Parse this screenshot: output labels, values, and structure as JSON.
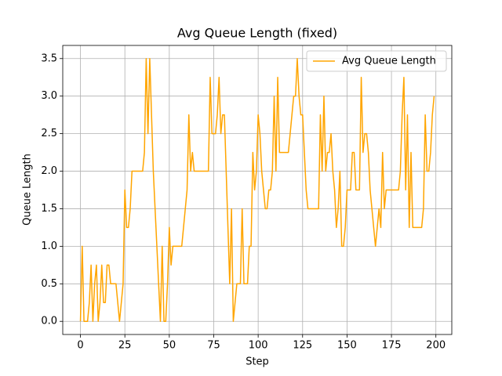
{
  "chart_data": {
    "type": "line",
    "title": "Avg Queue Length (fixed)",
    "xlabel": "Step",
    "ylabel": "Queue Length",
    "x": [
      0,
      1,
      2,
      3,
      4,
      5,
      6,
      7,
      8,
      9,
      10,
      11,
      12,
      13,
      14,
      15,
      16,
      17,
      18,
      19,
      20,
      21,
      22,
      23,
      24,
      25,
      26,
      27,
      28,
      29,
      30,
      31,
      32,
      33,
      34,
      35,
      36,
      37,
      38,
      39,
      40,
      41,
      42,
      43,
      44,
      45,
      46,
      47,
      48,
      49,
      50,
      51,
      52,
      53,
      54,
      55,
      56,
      57,
      58,
      59,
      60,
      61,
      62,
      63,
      64,
      65,
      66,
      67,
      68,
      69,
      70,
      71,
      72,
      73,
      74,
      75,
      76,
      77,
      78,
      79,
      80,
      81,
      82,
      83,
      84,
      85,
      86,
      87,
      88,
      89,
      90,
      91,
      92,
      93,
      94,
      95,
      96,
      97,
      98,
      99,
      100,
      101,
      102,
      103,
      104,
      105,
      106,
      107,
      108,
      109,
      110,
      111,
      112,
      113,
      114,
      115,
      116,
      117,
      118,
      119,
      120,
      121,
      122,
      123,
      124,
      125,
      126,
      127,
      128,
      129,
      130,
      131,
      132,
      133,
      134,
      135,
      136,
      137,
      138,
      139,
      140,
      141,
      142,
      143,
      144,
      145,
      146,
      147,
      148,
      149,
      150,
      151,
      152,
      153,
      154,
      155,
      156,
      157,
      158,
      159,
      160,
      161,
      162,
      163,
      164,
      165,
      166,
      167,
      168,
      169,
      170,
      171,
      172,
      173,
      174,
      175,
      176,
      177,
      178,
      179,
      180,
      181,
      182,
      183,
      184,
      185,
      186,
      187,
      188,
      189,
      190,
      191,
      192,
      193,
      194,
      195,
      196,
      197,
      198,
      199
    ],
    "series": [
      {
        "name": "Avg Queue Length",
        "color": "#ffa500",
        "values": [
          0,
          1,
          0,
          0,
          0,
          0.25,
          0.75,
          0,
          0.5,
          0.75,
          0,
          0.25,
          0.75,
          0.25,
          0.25,
          0.75,
          0.75,
          0.5,
          0.5,
          0.5,
          0.5,
          0.25,
          0,
          0.25,
          0.5,
          1.75,
          1.25,
          1.25,
          1.5,
          2,
          2,
          2,
          2,
          2,
          2,
          2,
          2.25,
          3.5,
          2.5,
          3.5,
          2.75,
          2,
          1.5,
          1,
          0.5,
          0,
          1,
          0,
          0,
          0.5,
          1.25,
          0.75,
          1,
          1,
          1,
          1,
          1,
          1,
          1.25,
          1.5,
          1.75,
          2.75,
          2,
          2.25,
          2,
          2,
          2,
          2,
          2,
          2,
          2,
          2,
          2,
          3.25,
          2.5,
          2.5,
          2.5,
          2.75,
          3.25,
          2.5,
          2.75,
          2.75,
          2,
          1.25,
          0.5,
          1.5,
          0,
          0.25,
          0.5,
          0.5,
          0.5,
          1.5,
          0.5,
          0.5,
          0.5,
          1,
          1,
          2.25,
          1.75,
          2,
          2.75,
          2.5,
          2,
          1.75,
          1.5,
          1.5,
          1.75,
          1.75,
          2,
          3,
          2,
          3.25,
          2.25,
          2.25,
          2.25,
          2.25,
          2.25,
          2.25,
          2.5,
          2.75,
          3,
          3,
          3.5,
          3,
          2.75,
          2.75,
          2.25,
          1.75,
          1.5,
          1.5,
          1.5,
          1.5,
          1.5,
          1.5,
          1.5,
          2.75,
          2,
          3,
          2,
          2.25,
          2.25,
          2.5,
          2,
          1.75,
          1.25,
          1.5,
          2,
          1,
          1,
          1.25,
          1.75,
          1.75,
          1.75,
          2.25,
          2.25,
          1.75,
          1.75,
          1.75,
          3.25,
          2.25,
          2.5,
          2.5,
          2.25,
          1.75,
          1.5,
          1.25,
          1,
          1.25,
          1.5,
          1.25,
          2.25,
          1.5,
          1.75,
          1.75,
          1.75,
          1.75,
          1.75,
          1.75,
          1.75,
          1.75,
          2,
          2.75,
          3.25,
          1.75,
          2.75,
          1.25,
          2.25,
          1.25,
          1.25,
          1.25,
          1.25,
          1.25,
          1.25,
          1.5,
          2.75,
          2,
          2,
          2.25,
          2.75,
          3
        ]
      }
    ],
    "xlim": [
      -9.95,
      208.95
    ],
    "xticks": [
      0,
      25,
      50,
      75,
      100,
      125,
      150,
      175,
      200
    ],
    "ylim": [
      -0.175,
      3.675
    ],
    "yticks": [
      {
        "value": 0,
        "label": "0.0"
      },
      0.5,
      {
        "value": 1,
        "label": "1.0"
      },
      1.5,
      {
        "value": 2,
        "label": "2.0"
      },
      2.5,
      {
        "value": 3,
        "label": "3.0"
      },
      3.5
    ],
    "grid": true,
    "legend": "upper right"
  }
}
